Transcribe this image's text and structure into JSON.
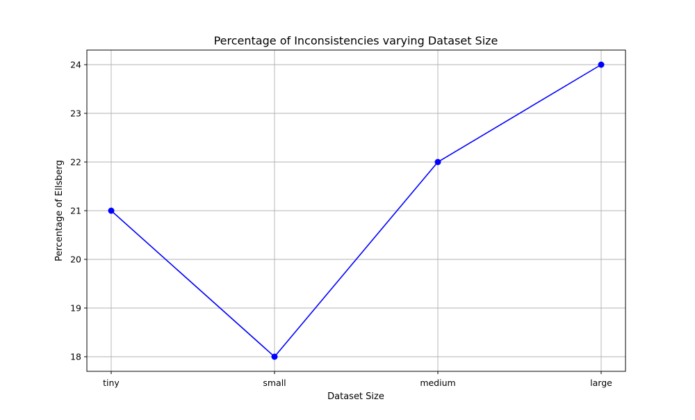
{
  "chart_data": {
    "type": "line",
    "title": "Percentage of Inconsistencies varying Dataset Size",
    "xlabel": "Dataset Size",
    "ylabel": "Percentage of Ellsberg",
    "categories": [
      "tiny",
      "small",
      "medium",
      "large"
    ],
    "series": [
      {
        "values": [
          21,
          18,
          22,
          24
        ],
        "color": "#0000ff",
        "marker": "circle"
      }
    ],
    "ylim": [
      17.7,
      24.3
    ],
    "yticks": [
      18,
      19,
      20,
      21,
      22,
      23,
      24
    ],
    "grid": true
  }
}
